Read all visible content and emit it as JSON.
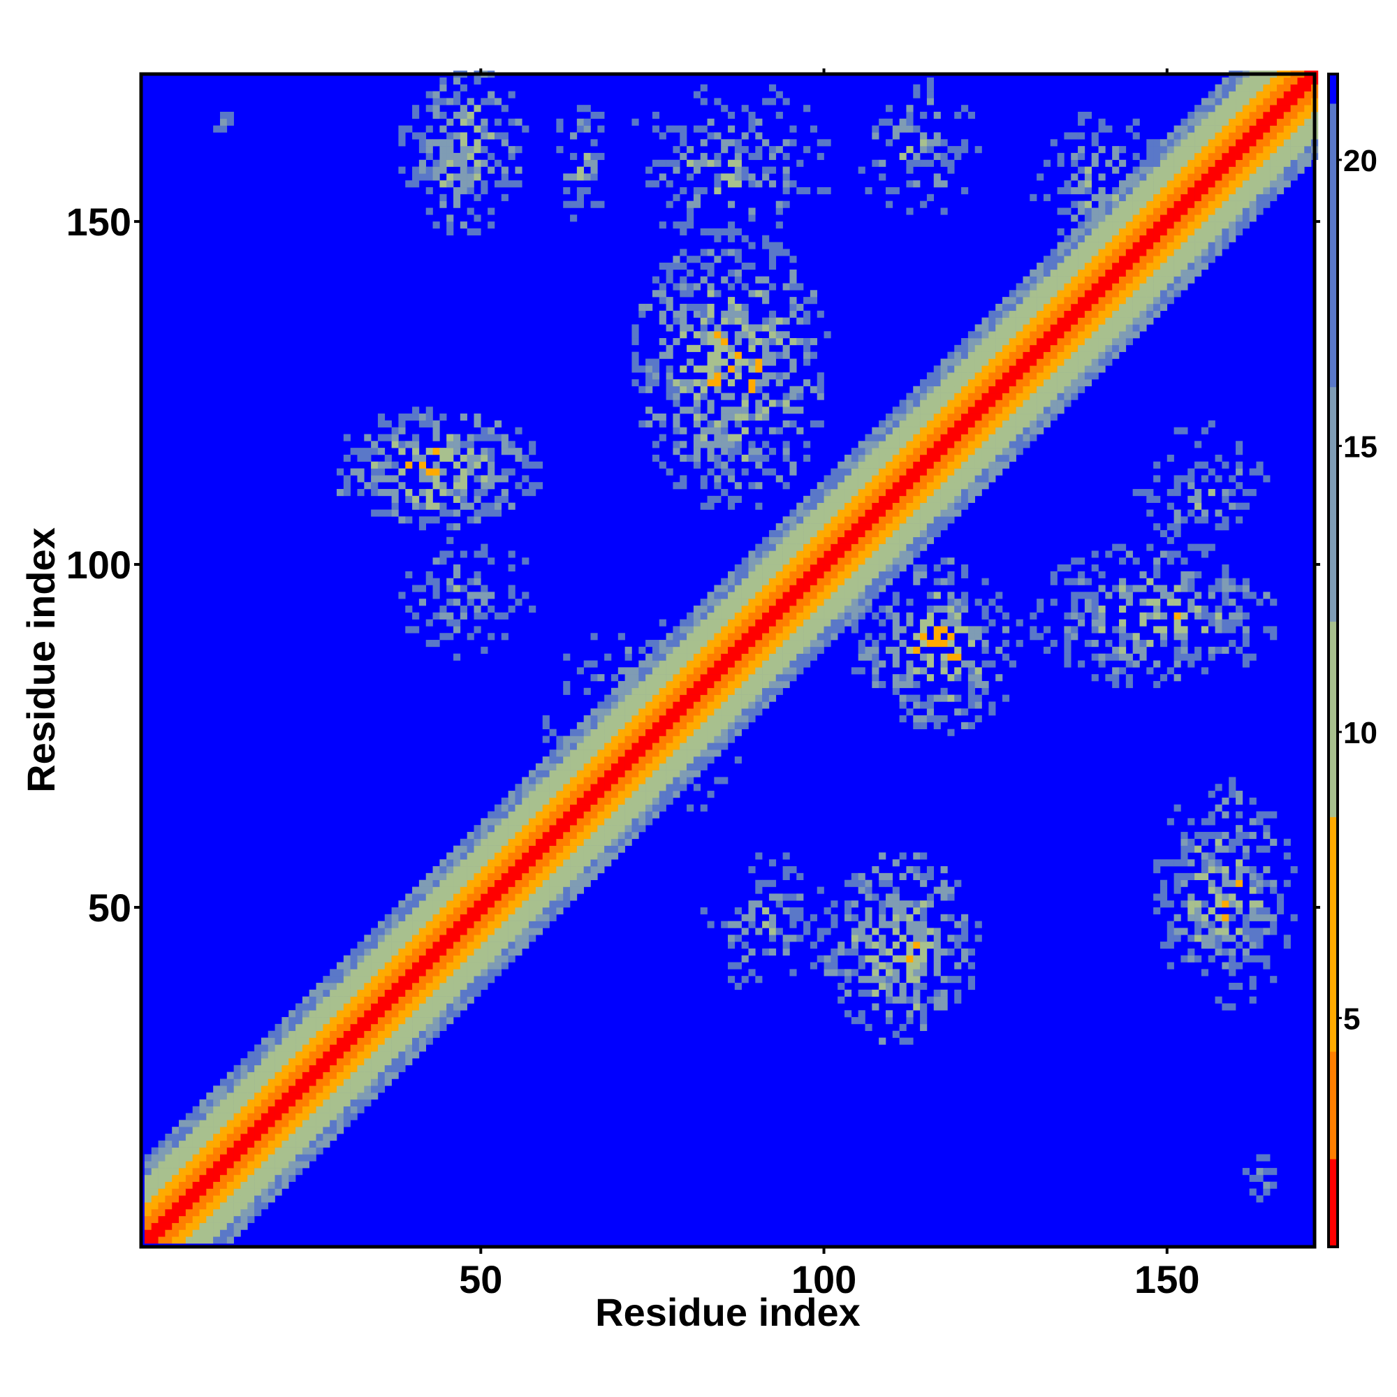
{
  "chart_data": {
    "type": "heatmap",
    "title": "",
    "xlabel": "Residue index",
    "ylabel": "Residue index",
    "n_residues": 171,
    "xlim": [
      1,
      171
    ],
    "ylim": [
      1,
      171
    ],
    "x_ticks": [
      50,
      100,
      150
    ],
    "y_ticks": [
      50,
      100,
      150
    ],
    "colorbar": {
      "range": [
        1,
        21.5
      ],
      "ticks": [
        5,
        10,
        15,
        20
      ],
      "colors": {
        "contact_min": "#ff0000",
        "contact_mid": "#ff7f00",
        "contact_high": "#ffaa00",
        "near": "#a8c08e",
        "mid": "#7f9cb4",
        "far": "#5a78c8",
        "background": "#0000ff"
      }
    },
    "diagonal_band": {
      "description_values": {
        "core_width": 3,
        "orange_width": 6,
        "green_width": 12,
        "halo_width": 16
      }
    },
    "contact_regions": [
      {
        "x": [
          38,
          56
        ],
        "y": [
          148,
          172
        ],
        "min_value": 6,
        "density": 0.55
      },
      {
        "x": [
          60,
          68
        ],
        "y": [
          148,
          168
        ],
        "min_value": 8,
        "density": 0.45
      },
      {
        "x": [
          70,
          100
        ],
        "y": [
          145,
          170
        ],
        "min_value": 8,
        "density": 0.35
      },
      {
        "x": [
          103,
          122
        ],
        "y": [
          150,
          170
        ],
        "min_value": 8,
        "density": 0.35
      },
      {
        "x": [
          130,
          150
        ],
        "y": [
          145,
          165
        ],
        "min_value": 7,
        "density": 0.45
      },
      {
        "x": [
          72,
          100
        ],
        "y": [
          108,
          148
        ],
        "min_value": 5,
        "density": 0.55
      },
      {
        "x": [
          28,
          58
        ],
        "y": [
          105,
          122
        ],
        "min_value": 5,
        "density": 0.6
      },
      {
        "x": [
          37,
          57
        ],
        "y": [
          85,
          106
        ],
        "min_value": 9,
        "density": 0.45
      },
      {
        "x": [
          104,
          128
        ],
        "y": [
          75,
          100
        ],
        "min_value": 5,
        "density": 0.55
      },
      {
        "x": [
          130,
          165
        ],
        "y": [
          82,
          102
        ],
        "min_value": 6,
        "density": 0.5
      },
      {
        "x": [
          145,
          165
        ],
        "y": [
          100,
          120
        ],
        "min_value": 9,
        "density": 0.4
      },
      {
        "x": [
          82,
          102
        ],
        "y": [
          37,
          57
        ],
        "min_value": 9,
        "density": 0.45
      },
      {
        "x": [
          100,
          122
        ],
        "y": [
          30,
          57
        ],
        "min_value": 5,
        "density": 0.6
      },
      {
        "x": [
          148,
          168
        ],
        "y": [
          35,
          68
        ],
        "min_value": 6,
        "density": 0.55
      },
      {
        "x": [
          59,
          88
        ],
        "y": [
          62,
          92
        ],
        "min_value": 8,
        "density": 0.35
      },
      {
        "x": [
          8,
          16
        ],
        "y": [
          162,
          167
        ],
        "min_value": 12,
        "density": 0.5
      },
      {
        "x": [
          160,
          167
        ],
        "y": [
          6,
          15
        ],
        "min_value": 12,
        "density": 0.5
      }
    ]
  }
}
